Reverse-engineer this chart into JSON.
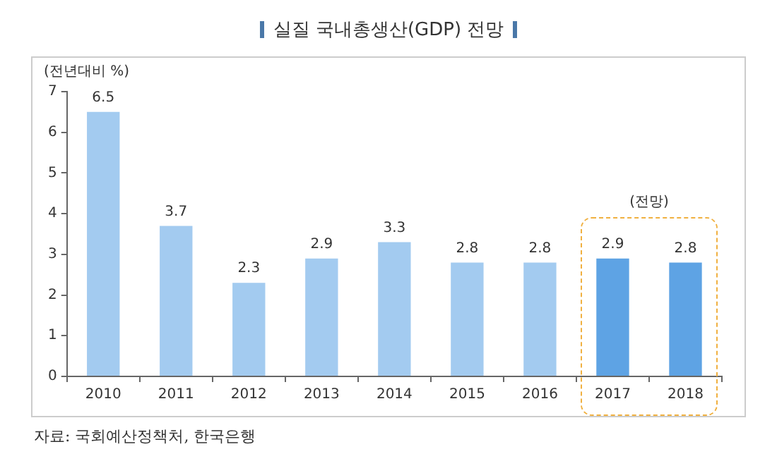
{
  "chart_data": {
    "type": "bar",
    "title": "실질 국내총생산(GDP) 전망",
    "ylabel": "(전년대비 %)",
    "categories": [
      "2010",
      "2011",
      "2012",
      "2013",
      "2014",
      "2015",
      "2016",
      "2017",
      "2018"
    ],
    "values": [
      6.5,
      3.7,
      2.3,
      2.9,
      3.3,
      2.8,
      2.8,
      2.9,
      2.8
    ],
    "colors": [
      "#a3cbf0",
      "#a3cbf0",
      "#a3cbf0",
      "#a3cbf0",
      "#a3cbf0",
      "#a3cbf0",
      "#a3cbf0",
      "#5ea3e4",
      "#5ea3e4"
    ],
    "ylim": [
      0,
      7
    ],
    "yticks": [
      0,
      1,
      2,
      3,
      4,
      5,
      6,
      7
    ],
    "grid": false,
    "legend": false,
    "data_labels": true,
    "annotations": [
      "자료: 국회예산정책처, 한국은행",
      "(전망)"
    ]
  }
}
